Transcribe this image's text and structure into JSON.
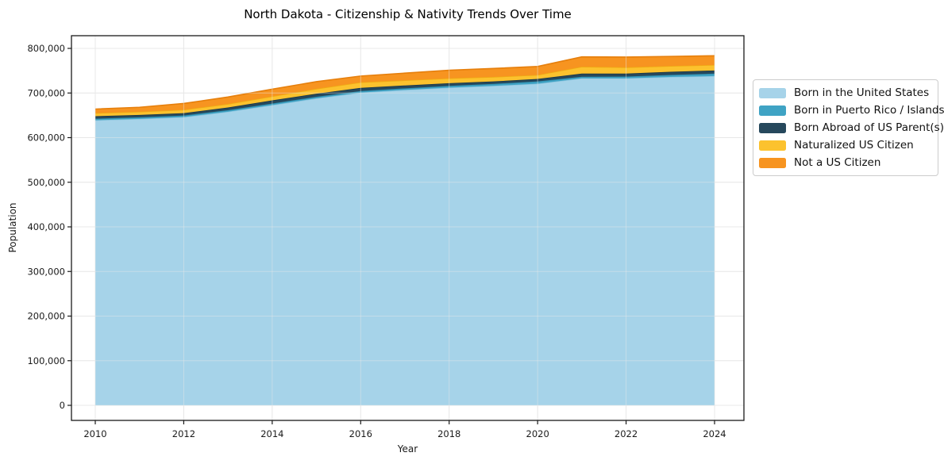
{
  "chart_data": {
    "type": "area",
    "stacked": true,
    "title": "North Dakota - Citizenship & Nativity Trends Over Time",
    "xlabel": "Year",
    "ylabel": "Population",
    "x": [
      2010,
      2011,
      2012,
      2013,
      2014,
      2015,
      2016,
      2017,
      2018,
      2019,
      2020,
      2021,
      2022,
      2023,
      2024
    ],
    "series": [
      {
        "name": "Born in the United States",
        "color": "#a6d3e9",
        "edge_color": "#8ec6e0",
        "values": [
          639000,
          642000,
          646000,
          658000,
          673000,
          688000,
          701000,
          707000,
          712000,
          716000,
          721000,
          733000,
          733000,
          736000,
          738000
        ]
      },
      {
        "name": "Born in Puerto Rico / Islands",
        "color": "#3fa3c4",
        "edge_color": "#2f8fb0",
        "values": [
          3500,
          3500,
          3500,
          3500,
          3500,
          3500,
          3500,
          3500,
          4000,
          4500,
          5000,
          3500,
          4000,
          4500,
          5500
        ]
      },
      {
        "name": "Born Abroad of US Parent(s)",
        "color": "#26485c",
        "edge_color": "#1c3747",
        "values": [
          5500,
          5500,
          5500,
          6000,
          7000,
          7000,
          7000,
          6500,
          6000,
          5500,
          5500,
          7000,
          6500,
          7000,
          7000
        ]
      },
      {
        "name": "Naturalized US Citizen",
        "color": "#fcc22e",
        "edge_color": "#efab13",
        "values": [
          7000,
          7000,
          7500,
          8000,
          9000,
          11000,
          12500,
          11500,
          11000,
          10000,
          9000,
          15500,
          14000,
          13000,
          12500
        ]
      },
      {
        "name": "Not a US Citizen",
        "color": "#f79420",
        "edge_color": "#e67f0c",
        "values": [
          9000,
          10000,
          14000,
          15500,
          16000,
          16000,
          14000,
          16000,
          18000,
          19000,
          19000,
          22000,
          23000,
          21500,
          20500
        ]
      }
    ],
    "xticks": [
      2010,
      2012,
      2014,
      2016,
      2018,
      2020,
      2022,
      2024
    ],
    "yticks": [
      0,
      100000,
      200000,
      300000,
      400000,
      500000,
      600000,
      700000,
      800000
    ],
    "ylim": [
      0,
      800000
    ],
    "grid": true,
    "legend_position": "right",
    "style": {
      "grid_color": "#e8e8e8",
      "spine_color": "#1a1a1a",
      "tick_text_color": "#1a1a1a",
      "background": "#ffffff"
    }
  }
}
